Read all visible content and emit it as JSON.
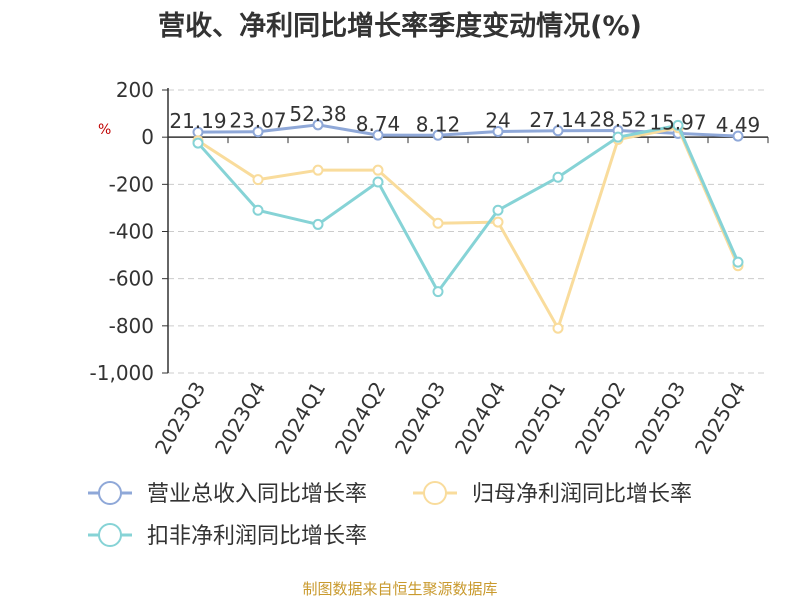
{
  "title": "营收、净利同比增长率季度变动情况(%)",
  "unit": "%",
  "source": "制图数据来自恒生聚源数据库",
  "chart_data": {
    "type": "line",
    "categories": [
      "2023Q3",
      "2023Q4",
      "2024Q1",
      "2024Q2",
      "2024Q3",
      "2024Q4",
      "2025Q1",
      "2025Q2",
      "2025Q3",
      "2025Q4"
    ],
    "ylim": [
      -1000,
      200
    ],
    "yticks": [
      200,
      0,
      -200,
      -400,
      -600,
      -800,
      -1000
    ],
    "ytick_labels": [
      "200",
      "0",
      "-200",
      "-400",
      "-600",
      "-800",
      "-1,000"
    ],
    "grid": true,
    "legend_position": "bottom-left",
    "series": [
      {
        "name": "营业总收入同比增长率",
        "color": "#8fa8d8",
        "values": [
          21.19,
          23.07,
          52.38,
          8.74,
          8.12,
          24,
          27.14,
          28.52,
          15.97,
          4.49
        ],
        "labels": [
          "21.19",
          "23.07",
          "52.38",
          "8.74",
          "8.12",
          "24",
          "27.14",
          "28.52",
          "15.97",
          "4.49"
        ]
      },
      {
        "name": "归母净利润同比增长率",
        "color": "#f9dc9c",
        "values": [
          -15,
          -180,
          -140,
          -140,
          -365,
          -360,
          -810,
          -10,
          40,
          -545
        ]
      },
      {
        "name": "扣非净利润同比增长率",
        "color": "#86d3d6",
        "values": [
          -25,
          -310,
          -370,
          -190,
          -655,
          -310,
          -170,
          0,
          50,
          -530
        ]
      }
    ]
  }
}
